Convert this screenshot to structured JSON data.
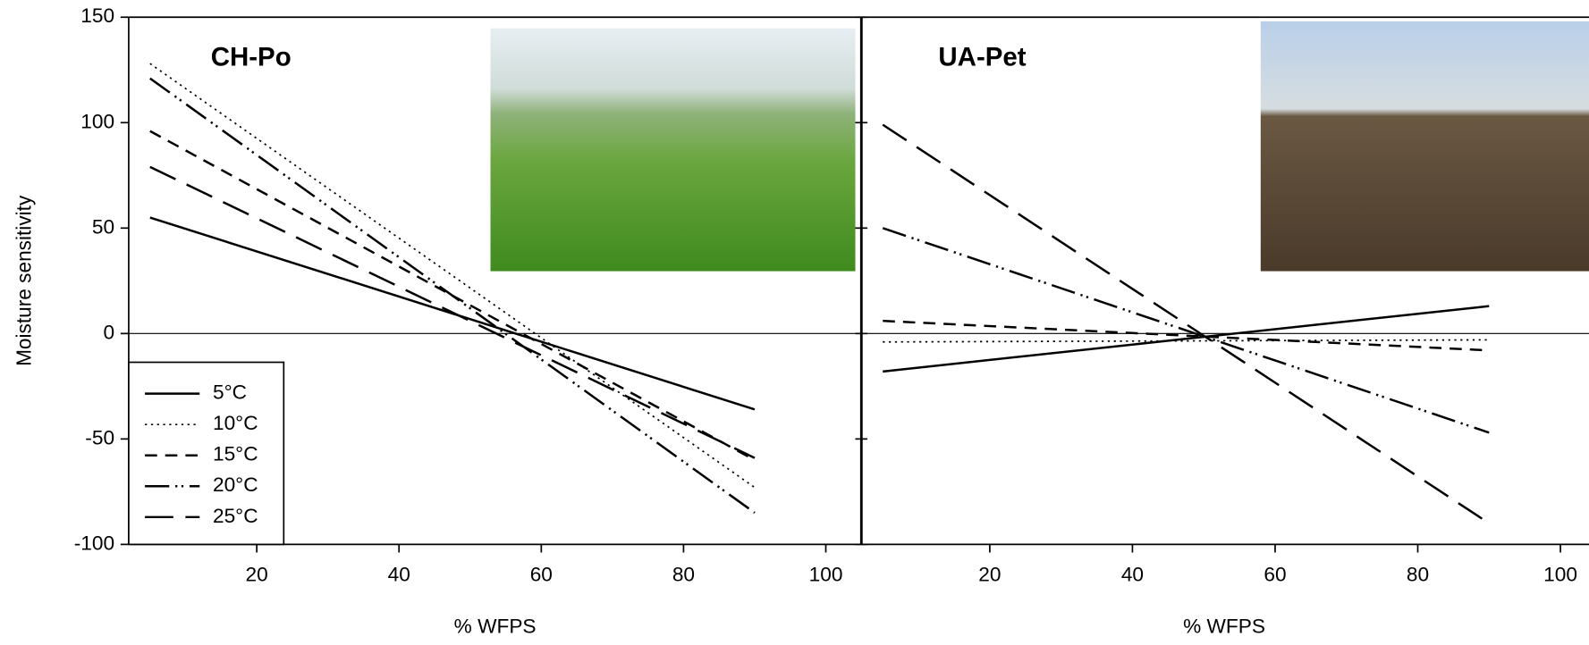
{
  "chart_data": [
    {
      "type": "line",
      "title": "CH-Po",
      "title_color": "#1a1aff",
      "xlabel": "% WFPS",
      "ylabel": "Moisture sensitivity",
      "x": [
        5,
        90
      ],
      "xlim": [
        2,
        105
      ],
      "xticks": [
        20,
        40,
        60,
        80,
        100
      ],
      "ylim": [
        -100,
        150
      ],
      "yticks": [
        -100,
        -50,
        0,
        50,
        100,
        150
      ],
      "series": [
        {
          "name": "5°C",
          "color": "#000000",
          "dash": "solid",
          "values": [
            55,
            -36
          ]
        },
        {
          "name": "10°C",
          "color": "#000000",
          "dash": "dotted",
          "values": [
            128,
            -73
          ]
        },
        {
          "name": "15°C",
          "color": "#000000",
          "dash": "short-dash",
          "values": [
            96,
            -60
          ]
        },
        {
          "name": "20°C",
          "color": "#000000",
          "dash": "dash-dot-dot",
          "values": [
            121,
            -85
          ]
        },
        {
          "name": "25°C",
          "color": "#000000",
          "dash": "long-dash",
          "values": [
            79,
            -59
          ]
        }
      ],
      "legend": "lower left"
    },
    {
      "type": "line",
      "title": "UA-Pet",
      "title_color": "#ee1111",
      "xlabel": "% WFPS",
      "x": [
        5,
        90
      ],
      "xlim": [
        2,
        105
      ],
      "xticks": [
        20,
        40,
        60,
        80,
        100
      ],
      "ylim": [
        -100,
        150
      ],
      "series": [
        {
          "color": "#000000",
          "dash": "solid",
          "values": [
            -18,
            13
          ]
        },
        {
          "color": "#000000",
          "dash": "dotted",
          "values": [
            -4,
            -3
          ]
        },
        {
          "color": "#000000",
          "dash": "short-dash",
          "values": [
            6,
            -8
          ]
        },
        {
          "color": "#000000",
          "dash": "dash-dot-dot",
          "values": [
            50,
            -47
          ]
        },
        {
          "color": "#000000",
          "dash": "long-dash",
          "values": [
            99,
            -90
          ]
        }
      ]
    }
  ]
}
